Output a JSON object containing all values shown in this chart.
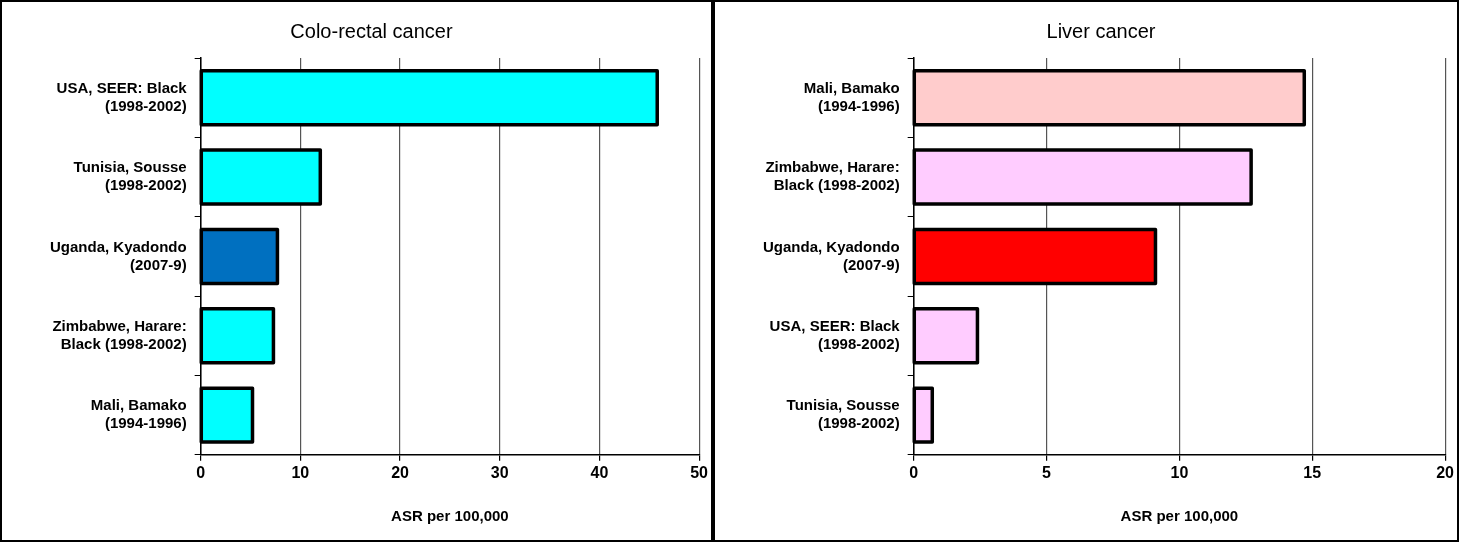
{
  "chart_data": [
    {
      "type": "bar",
      "orientation": "horizontal",
      "title": "Colo-rectal cancer",
      "xlabel": "ASR per 100,000",
      "categories": [
        "USA, SEER: Black (1998-2002)",
        "Tunisia, Sousse (1998-2002)",
        "Uganda, Kyadondo (2007-9)",
        "Zimbabwe, Harare: Black (1998-2002)",
        "Mali, Bamako (1994-1996)"
      ],
      "values": [
        45.8,
        12.0,
        7.7,
        7.3,
        5.2
      ],
      "colors": [
        "#00ffff",
        "#00ffff",
        "#0070c0",
        "#00ffff",
        "#00ffff"
      ],
      "xlim": [
        0,
        50
      ],
      "xticks": [
        0,
        10,
        20,
        30,
        40,
        50
      ],
      "grid": "x"
    },
    {
      "type": "bar",
      "orientation": "horizontal",
      "title": "Liver cancer",
      "xlabel": "ASR per 100,000",
      "categories": [
        "Mali, Bamako (1994-1996)",
        "Zimbabwe, Harare: Black (1998-2002)",
        "Uganda, Kyadondo (2007-9)",
        "USA, SEER: Black (1998-2002)",
        "Tunisia, Sousse (1998-2002)"
      ],
      "values": [
        14.7,
        12.7,
        9.1,
        2.4,
        0.7
      ],
      "colors": [
        "#ffcccc",
        "#ffccff",
        "#ff0000",
        "#ffccff",
        "#ffccff"
      ],
      "xlim": [
        0,
        20
      ],
      "xticks": [
        0,
        5,
        10,
        15,
        20
      ],
      "grid": "x"
    }
  ]
}
